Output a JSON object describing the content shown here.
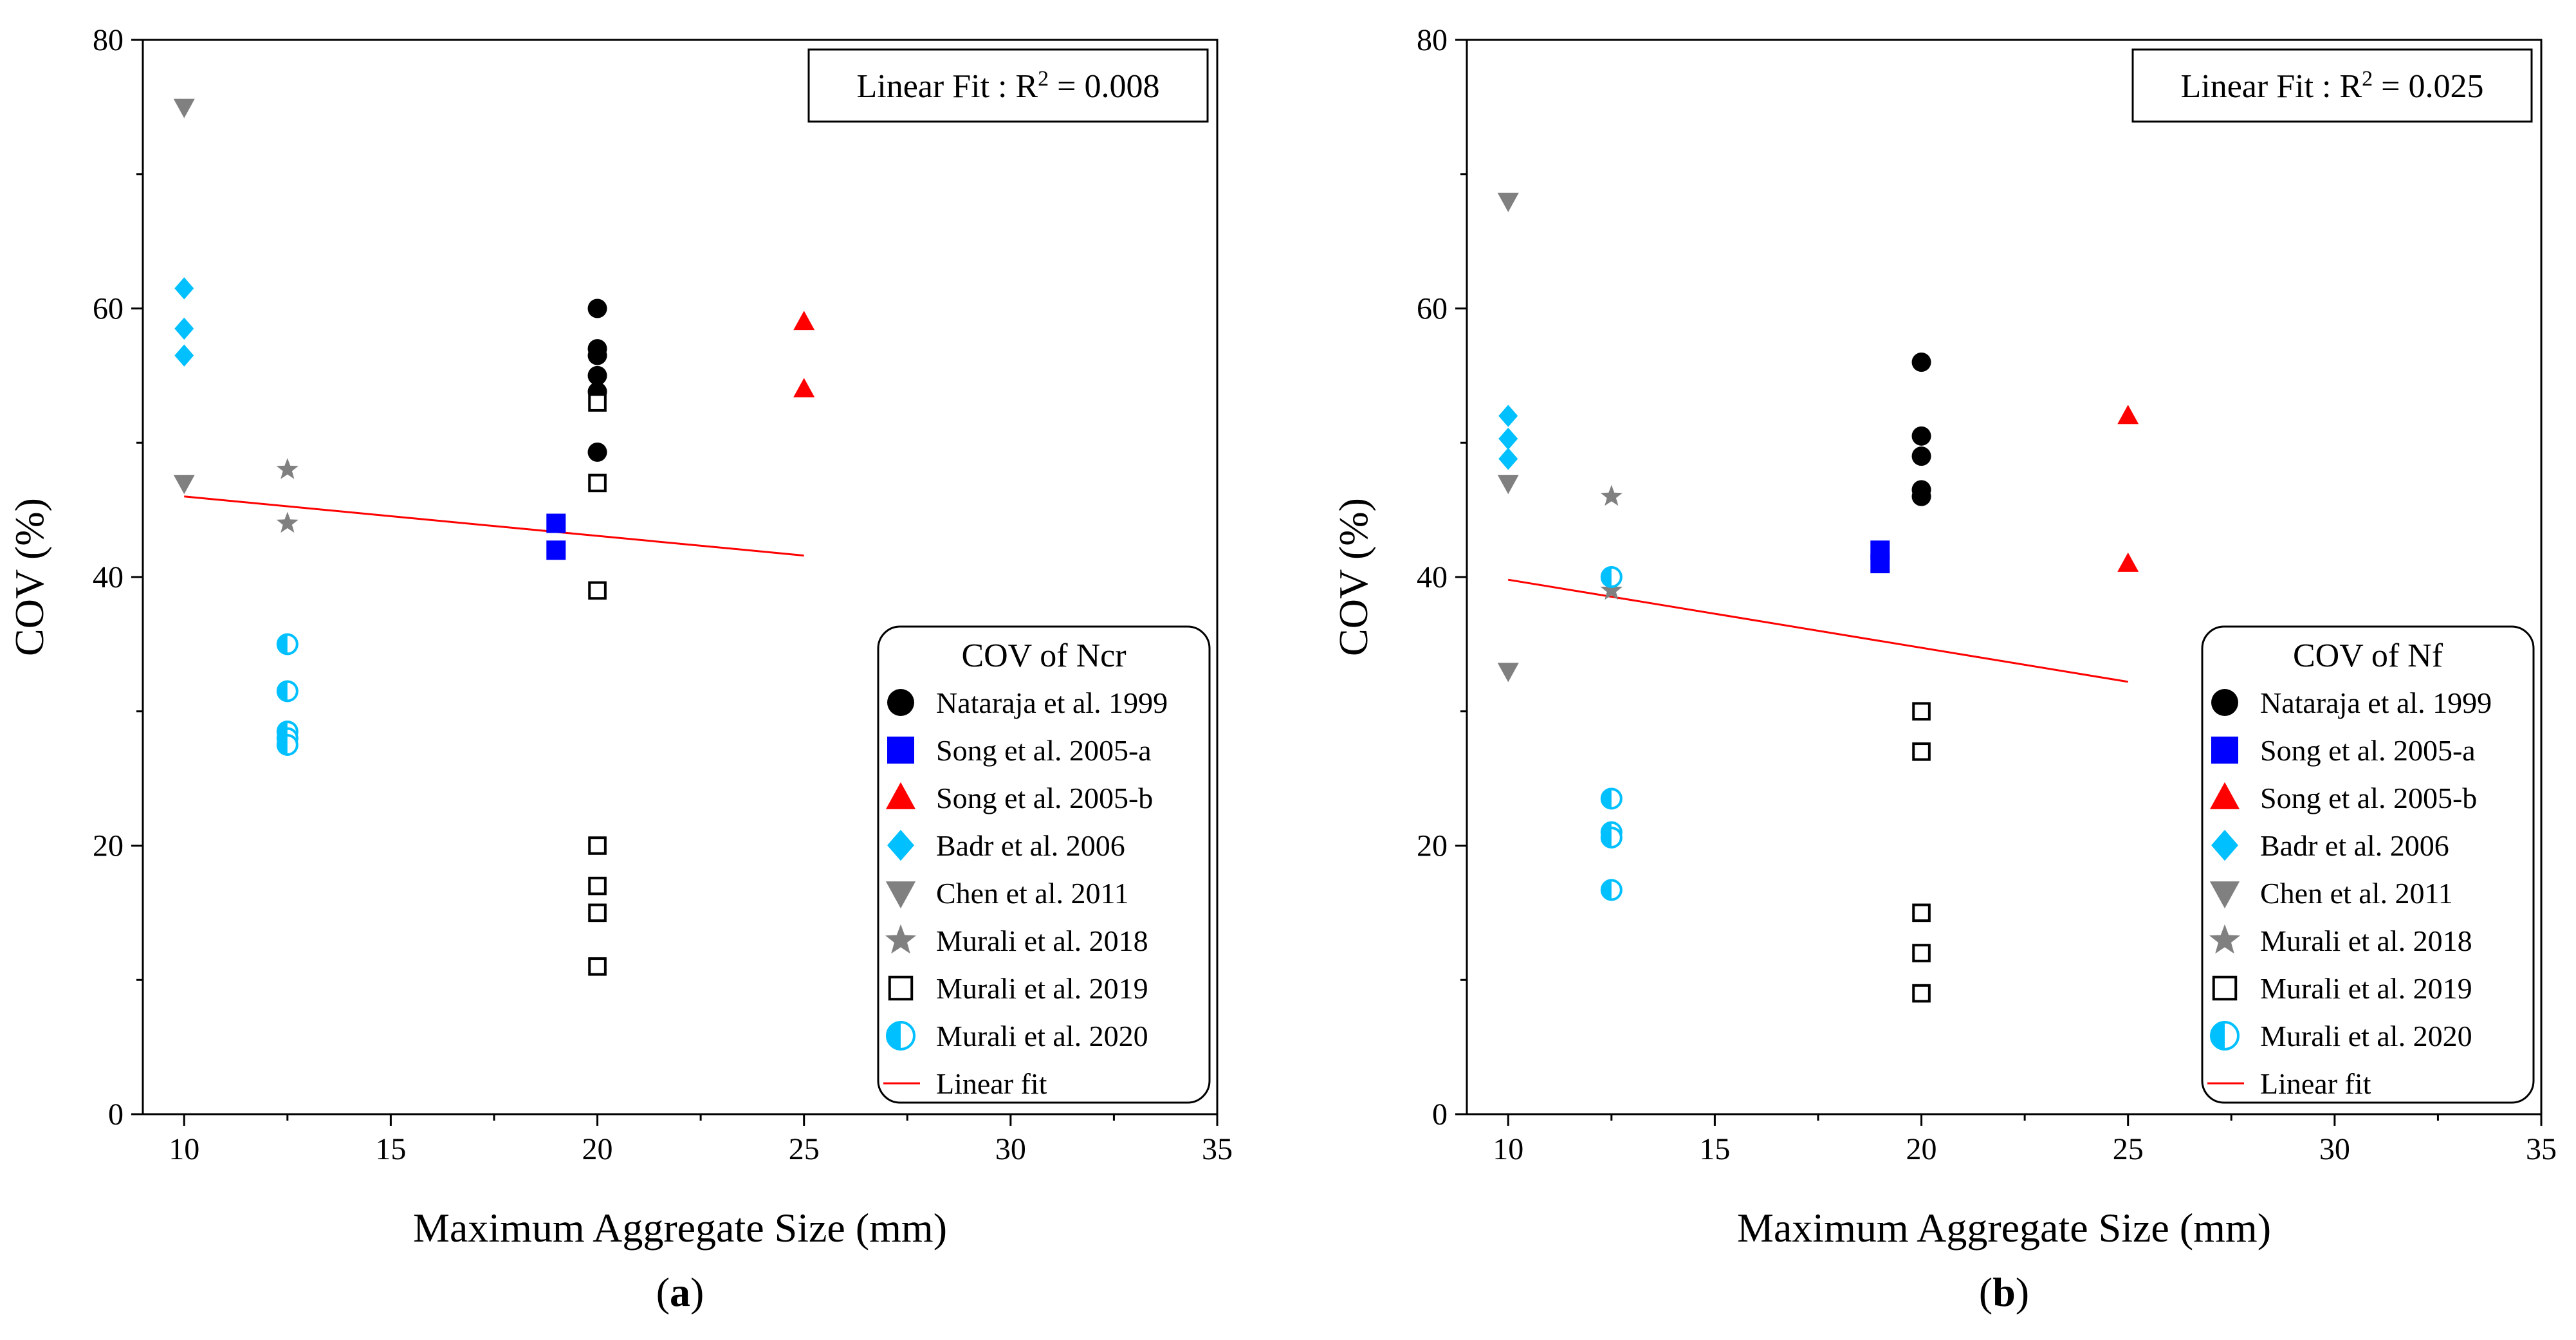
{
  "chart_data": [
    {
      "type": "scatter",
      "panel_label": "(a)",
      "xlabel": "Maximum Aggregate Size (mm)",
      "ylabel": "COV (%)",
      "xlim": [
        9,
        35
      ],
      "ylim": [
        0,
        80
      ],
      "x_ticks": [
        10,
        15,
        20,
        25,
        30,
        35
      ],
      "y_ticks": [
        0,
        20,
        40,
        60,
        80
      ],
      "grid": false,
      "fit_box": {
        "prefix": "Linear Fit : R",
        "sup": "2",
        "suffix": " = 0.008"
      },
      "legend_title": "COV of Ncr",
      "legend_position": "bottom-right",
      "series": [
        {
          "name": "Nataraja et al. 1999",
          "marker": "circle",
          "color": "#000000",
          "points": [
            [
              20,
              60
            ],
            [
              20,
              57
            ],
            [
              20,
              56.5
            ],
            [
              20,
              55
            ],
            [
              20,
              53.8
            ],
            [
              20,
              49.3
            ]
          ]
        },
        {
          "name": "Song et al. 2005-a",
          "marker": "square",
          "color": "#0000ff",
          "points": [
            [
              19,
              44
            ],
            [
              19,
              42
            ]
          ]
        },
        {
          "name": "Song et al. 2005-b",
          "marker": "triangle-up",
          "color": "#ff0000",
          "points": [
            [
              25,
              59
            ],
            [
              25,
              54
            ]
          ]
        },
        {
          "name": "Badr et al. 2006",
          "marker": "diamond",
          "color": "#00c0ff",
          "points": [
            [
              10,
              61.5
            ],
            [
              10,
              58.5
            ],
            [
              10,
              56.5
            ]
          ]
        },
        {
          "name": "Chen et al. 2011",
          "marker": "triangle-down",
          "color": "#808080",
          "points": [
            [
              10,
              75
            ],
            [
              10,
              47
            ]
          ]
        },
        {
          "name": "Murali et al. 2018",
          "marker": "star",
          "color": "#808080",
          "points": [
            [
              12.5,
              48
            ],
            [
              12.5,
              44
            ]
          ]
        },
        {
          "name": "Murali et al. 2019",
          "marker": "open-square",
          "color": "#000000",
          "points": [
            [
              20,
              53
            ],
            [
              20,
              47
            ],
            [
              20,
              39
            ],
            [
              20,
              20
            ],
            [
              20,
              17
            ],
            [
              20,
              15
            ],
            [
              20,
              11
            ]
          ]
        },
        {
          "name": "Murali et al. 2020",
          "marker": "half-circle",
          "color": "#00c0ff",
          "points": [
            [
              12.5,
              35
            ],
            [
              12.5,
              31.5
            ],
            [
              12.5,
              28.5
            ],
            [
              12.5,
              28
            ],
            [
              12.5,
              27.5
            ]
          ]
        }
      ],
      "linear_fit": {
        "name": "Linear fit",
        "color": "#ff0000",
        "x": [
          10,
          25
        ],
        "y": [
          46,
          41.6
        ]
      }
    },
    {
      "type": "scatter",
      "panel_label": "(b)",
      "xlabel": "Maximum Aggregate Size (mm)",
      "ylabel": "COV (%)",
      "xlim": [
        9,
        35
      ],
      "ylim": [
        0,
        80
      ],
      "x_ticks": [
        10,
        15,
        20,
        25,
        30,
        35
      ],
      "y_ticks": [
        0,
        20,
        40,
        60,
        80
      ],
      "grid": false,
      "fit_box": {
        "prefix": "Linear Fit : R",
        "sup": "2",
        "suffix": " = 0.025"
      },
      "legend_title": "COV of Nf",
      "legend_position": "bottom-right",
      "series": [
        {
          "name": "Nataraja et al. 1999",
          "marker": "circle",
          "color": "#000000",
          "points": [
            [
              20,
              56
            ],
            [
              20,
              50.5
            ],
            [
              20,
              49
            ],
            [
              20,
              46.5
            ],
            [
              20,
              46
            ]
          ]
        },
        {
          "name": "Song et al. 2005-a",
          "marker": "square",
          "color": "#0000ff",
          "points": [
            [
              19,
              42
            ],
            [
              19,
              41
            ]
          ]
        },
        {
          "name": "Song et al. 2005-b",
          "marker": "triangle-up",
          "color": "#ff0000",
          "points": [
            [
              25,
              52
            ],
            [
              25,
              41
            ]
          ]
        },
        {
          "name": "Badr et al. 2006",
          "marker": "diamond",
          "color": "#00c0ff",
          "points": [
            [
              10,
              52
            ],
            [
              10,
              50.3
            ],
            [
              10,
              48.8
            ]
          ]
        },
        {
          "name": "Chen et al. 2011",
          "marker": "triangle-down",
          "color": "#808080",
          "points": [
            [
              10,
              68
            ],
            [
              10,
              47
            ],
            [
              10,
              33
            ]
          ]
        },
        {
          "name": "Murali et al. 2018",
          "marker": "star",
          "color": "#808080",
          "points": [
            [
              12.5,
              46
            ],
            [
              12.5,
              39
            ]
          ]
        },
        {
          "name": "Murali et al. 2019",
          "marker": "open-square",
          "color": "#000000",
          "points": [
            [
              20,
              30
            ],
            [
              20,
              27
            ],
            [
              20,
              15
            ],
            [
              20,
              12
            ],
            [
              20,
              9
            ]
          ]
        },
        {
          "name": "Murali et al. 2020",
          "marker": "half-circle",
          "color": "#00c0ff",
          "points": [
            [
              12.5,
              40
            ],
            [
              12.5,
              23.5
            ],
            [
              12.5,
              21
            ],
            [
              12.5,
              20.6
            ],
            [
              12.5,
              16.7
            ]
          ]
        }
      ],
      "linear_fit": {
        "name": "Linear fit",
        "color": "#ff0000",
        "x": [
          10,
          25
        ],
        "y": [
          39.8,
          32.2
        ]
      }
    }
  ]
}
